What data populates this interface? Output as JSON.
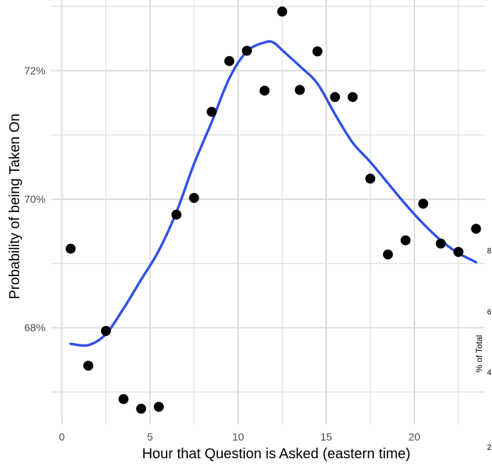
{
  "chart_data": {
    "type": "scatter",
    "title": "",
    "xlabel": "Hour that Question is Asked (eastern time)",
    "ylabel": "Probability of being Taken On",
    "xlim": [
      -0.6,
      24.0
    ],
    "ylim": [
      66.5,
      73.1
    ],
    "x_ticks": [
      0,
      5,
      10,
      15,
      20
    ],
    "x_tick_labels": [
      "0",
      "5",
      "10",
      "15",
      "20"
    ],
    "y_ticks": [
      68,
      70,
      72
    ],
    "y_tick_labels": [
      "68%",
      "70%",
      "72%"
    ],
    "grid": true,
    "series": [
      {
        "kind": "points",
        "color": "#000000",
        "x": [
          0.5,
          1.5,
          2.5,
          3.5,
          4.5,
          5.5,
          6.5,
          7.5,
          8.5,
          9.5,
          10.5,
          11.5,
          12.5,
          13.5,
          14.5,
          15.5,
          16.5,
          17.5,
          18.5,
          19.5,
          20.5,
          21.5,
          22.5,
          23.5
        ],
        "y": [
          69.23,
          67.41,
          67.95,
          66.89,
          66.74,
          66.77,
          69.76,
          70.02,
          71.36,
          72.15,
          72.31,
          71.69,
          72.92,
          71.7,
          72.3,
          71.59,
          71.59,
          70.32,
          69.14,
          69.36,
          69.93,
          69.31,
          69.18,
          69.54
        ]
      },
      {
        "kind": "smooth",
        "color": "#3050e8",
        "x": [
          0.5,
          1.5,
          2.5,
          3.5,
          4.5,
          5.5,
          6.5,
          7.5,
          8.5,
          9.5,
          10.5,
          11.5,
          12.0,
          12.5,
          13.5,
          14.5,
          15.5,
          16.5,
          17.5,
          18.5,
          19.5,
          20.5,
          21.5,
          22.5,
          23.5
        ],
        "y": [
          67.75,
          67.73,
          67.9,
          68.3,
          68.75,
          69.2,
          69.8,
          70.55,
          71.2,
          71.88,
          72.3,
          72.44,
          72.44,
          72.32,
          72.07,
          71.8,
          71.32,
          70.88,
          70.58,
          70.25,
          69.92,
          69.62,
          69.36,
          69.16,
          69.02
        ]
      }
    ],
    "secondary_axis": {
      "title": "% of Total",
      "tick_labels": [
        "2",
        "4",
        "6",
        "8"
      ]
    }
  }
}
